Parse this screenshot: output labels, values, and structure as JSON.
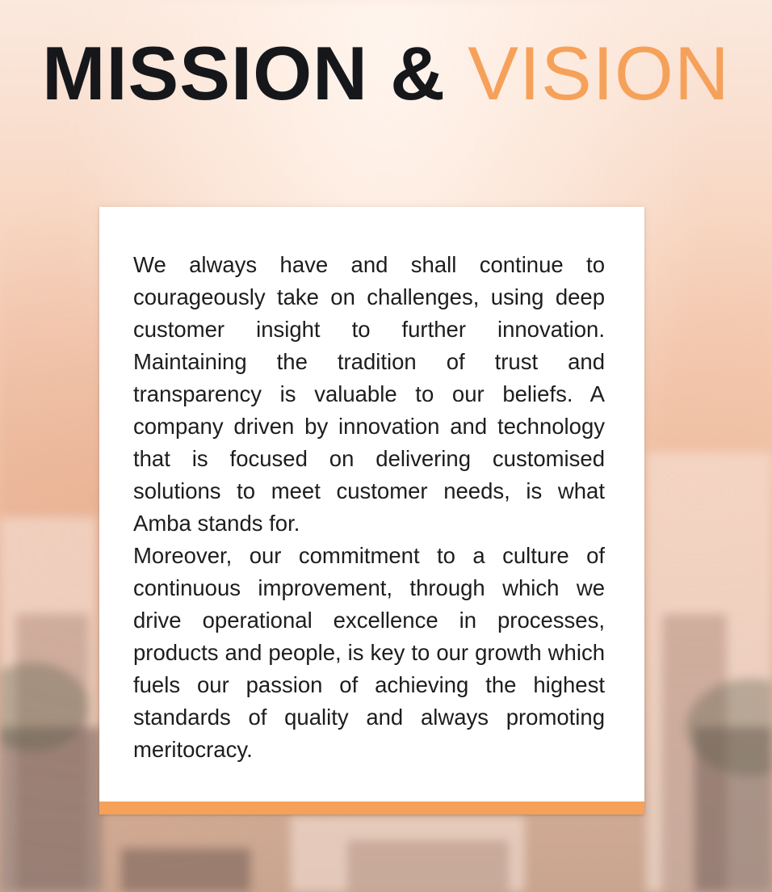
{
  "header": {
    "title_part1": "MISSION &",
    "title_part2": "VISION"
  },
  "card": {
    "paragraph1": "We always have and shall continue to courageously take on challenges, using deep customer insight to further innovation. Maintaining the tradition of trust and transparency is valuable to our beliefs. A company driven by innovation and technology that is focused on delivering customised solutions to meet customer needs, is what Amba stands for.",
    "paragraph2": "Moreover, our commitment to a culture of continuous improvement, through which we drive operational excellence in processes, products and people, is key to our growth which fuels our passion of achieving the highest standards of quality and always promoting meritocracy."
  },
  "colors": {
    "accent": "#f6a15a",
    "title_dark": "#16171b",
    "text": "#1d1d1f"
  }
}
